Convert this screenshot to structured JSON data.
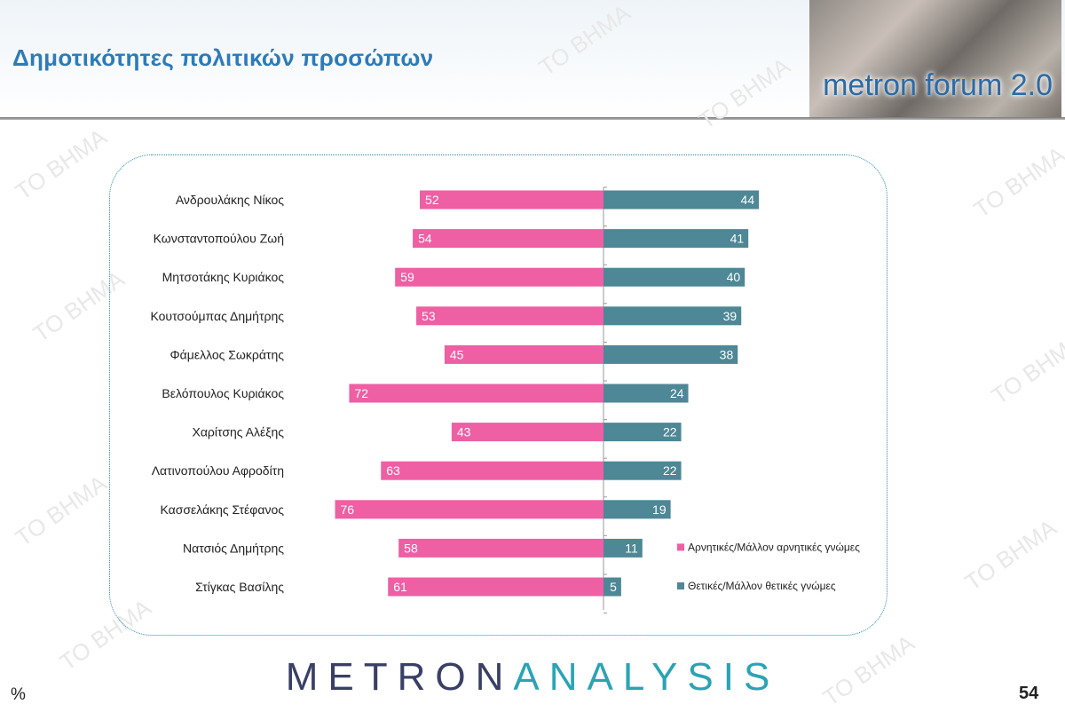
{
  "header": {
    "title": "Δημοτικότητες πολιτικών προσώπων",
    "banner_text": "metron forum 2.0"
  },
  "watermark": "TO BHMA",
  "footer": {
    "logo_part1": "METRON",
    "logo_part2": "ANALYSIS",
    "unit": "%",
    "page_number": "54"
  },
  "colors": {
    "negative": "#ee5fa4",
    "positive": "#4e8795",
    "title": "#2d7bb8",
    "box_border": "#2e8ab3"
  },
  "chart_data": {
    "type": "bar",
    "orientation": "horizontal-diverging",
    "categories": [
      "Ανδρουλάκης Νίκος",
      "Κωνσταντοπούλου Ζωή",
      "Μητσοτάκης Κυριάκος",
      "Κουτσούμπας Δημήτρης",
      "Φάμελλος Σωκράτης",
      "Βελόπουλος Κυριάκος",
      "Χαρίτσης Αλέξης",
      "Λατινοπούλου Αφροδίτη",
      "Κασσελάκης Στέφανος",
      "Νατσιός Δημήτρης",
      "Στίγκας Βασίλης"
    ],
    "series": [
      {
        "name": "Αρνητικές/Μάλλον αρνητικές γνώμες",
        "values": [
          52,
          54,
          59,
          53,
          45,
          72,
          43,
          63,
          76,
          58,
          61
        ]
      },
      {
        "name": "Θετικές/Μάλλον θετικές γνώμες",
        "values": [
          44,
          41,
          40,
          39,
          38,
          24,
          22,
          22,
          19,
          11,
          5
        ]
      }
    ],
    "legend_position": "right"
  }
}
